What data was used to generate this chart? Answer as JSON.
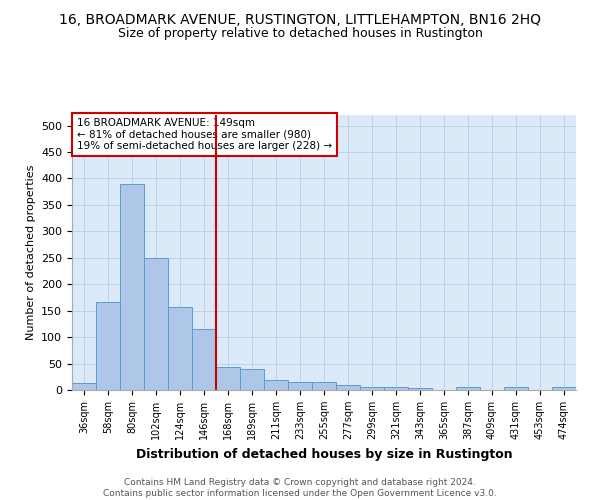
{
  "title": "16, BROADMARK AVENUE, RUSTINGTON, LITTLEHAMPTON, BN16 2HQ",
  "subtitle": "Size of property relative to detached houses in Rustington",
  "xlabel": "Distribution of detached houses by size in Rustington",
  "ylabel": "Number of detached properties",
  "categories": [
    "36sqm",
    "58sqm",
    "80sqm",
    "102sqm",
    "124sqm",
    "146sqm",
    "168sqm",
    "189sqm",
    "211sqm",
    "233sqm",
    "255sqm",
    "277sqm",
    "299sqm",
    "321sqm",
    "343sqm",
    "365sqm",
    "387sqm",
    "409sqm",
    "431sqm",
    "453sqm",
    "474sqm"
  ],
  "values": [
    13,
    167,
    390,
    250,
    157,
    115,
    44,
    40,
    18,
    15,
    15,
    9,
    6,
    5,
    3,
    0,
    6,
    0,
    5,
    0,
    5
  ],
  "bar_color": "#aec6e8",
  "bar_edge_color": "#5b9bd5",
  "vline_x": 5.5,
  "vline_color": "#cc0000",
  "annotation_text": "16 BROADMARK AVENUE: 149sqm\n← 81% of detached houses are smaller (980)\n19% of semi-detached houses are larger (228) →",
  "annotation_box_color": "#ffffff",
  "annotation_box_edge": "#cc0000",
  "ylim": [
    0,
    520
  ],
  "yticks": [
    0,
    50,
    100,
    150,
    200,
    250,
    300,
    350,
    400,
    450,
    500
  ],
  "bg_color": "#dce9f8",
  "footnote": "Contains HM Land Registry data © Crown copyright and database right 2024.\nContains public sector information licensed under the Open Government Licence v3.0.",
  "title_fontsize": 10,
  "subtitle_fontsize": 9,
  "xlabel_fontsize": 9,
  "ylabel_fontsize": 8
}
